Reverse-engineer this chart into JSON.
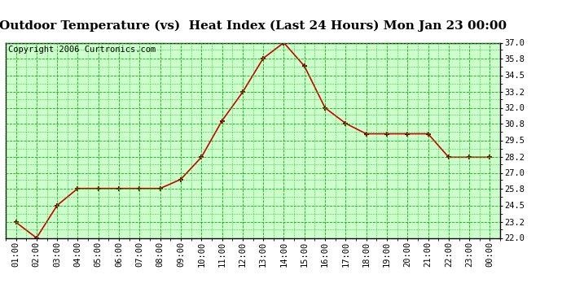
{
  "title": "Outdoor Temperature (vs)  Heat Index (Last 24 Hours) Mon Jan 23 00:00",
  "copyright": "Copyright 2006 Curtronics.com",
  "x_labels": [
    "01:00",
    "02:00",
    "03:00",
    "04:00",
    "05:00",
    "06:00",
    "07:00",
    "08:00",
    "09:00",
    "10:00",
    "11:00",
    "12:00",
    "13:00",
    "14:00",
    "15:00",
    "16:00",
    "17:00",
    "18:00",
    "19:00",
    "20:00",
    "21:00",
    "22:00",
    "23:00",
    "00:00"
  ],
  "y_values": [
    23.2,
    22.0,
    24.5,
    25.8,
    25.8,
    25.8,
    25.8,
    25.8,
    26.5,
    28.2,
    31.0,
    33.2,
    35.8,
    37.0,
    35.2,
    32.0,
    30.8,
    30.0,
    30.0,
    30.0,
    30.0,
    28.2,
    28.2,
    28.2
  ],
  "y_ticks": [
    22.0,
    23.2,
    24.5,
    25.8,
    27.0,
    28.2,
    29.5,
    30.8,
    32.0,
    33.2,
    34.5,
    35.8,
    37.0
  ],
  "y_min": 22.0,
  "y_max": 37.0,
  "line_color": "#cc0000",
  "marker_color": "#880000",
  "outer_bg": "#ffffff",
  "plot_bg": "#ccffcc",
  "grid_color": "#00bb00",
  "border_color": "#000000",
  "title_fontsize": 11,
  "copyright_fontsize": 7.5,
  "tick_fontsize": 7.5
}
